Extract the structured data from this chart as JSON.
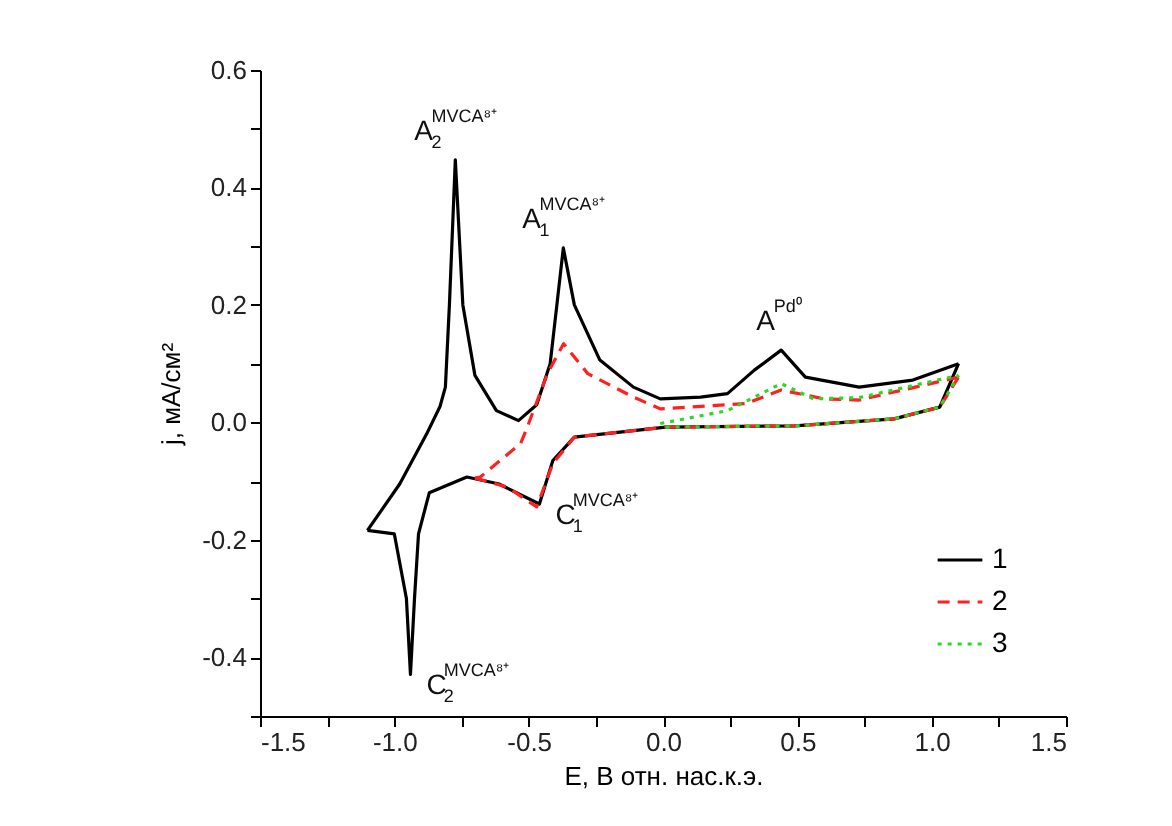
{
  "chart_data": {
    "type": "line",
    "xlabel": "E, В отн. нас.к.э.",
    "ylabel": "j, мА/см²",
    "xlim": [
      -1.5,
      1.5
    ],
    "ylim": [
      -0.5,
      0.6
    ],
    "xticks": [
      -1.5,
      {
        "value": -1.25,
        "label": null
      },
      {
        "value": -1.0,
        "label": "-1.0"
      },
      {
        "value": -0.75,
        "label": null
      },
      -0.5,
      {
        "value": -0.25,
        "label": null
      },
      {
        "value": 0,
        "label": "0.0"
      },
      {
        "value": 0.25,
        "label": null
      },
      0.5,
      {
        "value": 0.75,
        "label": null
      },
      {
        "value": 1.0,
        "label": "1.0"
      },
      {
        "value": 1.25,
        "label": null
      },
      1.5
    ],
    "yticks": [
      {
        "value": -0.5,
        "label": null
      },
      -0.4,
      {
        "value": -0.3,
        "label": null
      },
      -0.2,
      {
        "value": -0.1,
        "label": null
      },
      {
        "value": 0,
        "label": "0.0"
      },
      {
        "value": 0.1,
        "label": null
      },
      0.2,
      {
        "value": 0.3,
        "label": null
      },
      0.4,
      {
        "value": 0.5,
        "label": null
      },
      0.6
    ],
    "grid": false,
    "legend": "bottom right",
    "marker": "none",
    "series": [
      {
        "name": "1",
        "color": "#000000",
        "line_style": "solid",
        "x": [
          1.1,
          0.93,
          0.73,
          0.53,
          0.44,
          0.34,
          0.24,
          0.14,
          -0.01,
          -0.11,
          -0.235,
          -0.33,
          -0.371,
          -0.395,
          -0.42,
          -0.47,
          -0.538,
          -0.62,
          -0.7,
          -0.745,
          -0.773,
          -0.795,
          -0.81,
          -0.83,
          -0.88,
          -0.98,
          -1.1
        ],
        "values": [
          0.1,
          0.072,
          0.06,
          0.077,
          0.123,
          0.089,
          0.049,
          0.043,
          0.04,
          0.06,
          0.106,
          0.2,
          0.297,
          0.2,
          0.1,
          0.03,
          0.003,
          0.02,
          0.08,
          0.2,
          0.447,
          0.2,
          0.06,
          0.027,
          -0.02,
          -0.105,
          -0.184
        ]
      },
      {
        "color": "#000000",
        "line_style": "solid",
        "x": [
          -1.1,
          -1.0,
          -0.955,
          -0.94,
          -0.925,
          -0.91,
          -0.87,
          -0.73,
          -0.61,
          -0.46,
          -0.41,
          -0.33,
          0.01,
          0.49,
          0.86,
          1.03,
          1.1
        ],
        "values": [
          -0.184,
          -0.19,
          -0.3,
          -0.429,
          -0.3,
          -0.19,
          -0.12,
          -0.093,
          -0.105,
          -0.139,
          -0.065,
          -0.025,
          -0.008,
          -0.006,
          0.006,
          0.026,
          0.1
        ]
      },
      {
        "name": "2",
        "color": "#ff2020",
        "line_style": "dashed",
        "x": [
          1.1,
          0.73,
          0.6,
          0.44,
          0.31,
          -0.01,
          -0.11,
          -0.28,
          -0.37,
          -0.43,
          -0.51,
          -0.53,
          -0.68,
          -0.7
        ],
        "values": [
          0.077,
          0.038,
          0.04,
          0.055,
          0.032,
          0.023,
          0.043,
          0.083,
          0.134,
          0.083,
          -0.014,
          -0.036,
          -0.093,
          -0.095
        ]
      },
      {
        "color": "#ff2020",
        "line_style": "dashed",
        "x": [
          -0.7,
          -0.58,
          -0.47,
          -0.41,
          -0.33,
          0.01,
          0.49,
          0.86,
          1.03,
          1.1
        ],
        "values": [
          -0.095,
          -0.11,
          -0.144,
          -0.07,
          -0.025,
          -0.008,
          -0.006,
          0.006,
          0.026,
          0.077
        ]
      },
      {
        "name": "3",
        "color": "#22dd22",
        "line_style": "dotted",
        "x": [
          -0.01,
          0.24,
          0.44,
          0.56,
          0.73,
          1.1
        ],
        "values": [
          -0.002,
          0.02,
          0.066,
          0.04,
          0.042,
          0.08
        ]
      },
      {
        "color": "#22dd22",
        "line_style": "dotted",
        "x": [
          0.01,
          0.49,
          0.86,
          1.03,
          1.1
        ],
        "values": [
          -0.008,
          -0.006,
          0.006,
          0.026,
          0.08
        ]
      }
    ],
    "annotations": [
      {
        "text": "A$_{2}$$^{MVCA⁸⁺}$",
        "x": -0.773,
        "y": 0.447
      },
      {
        "text": "A$_{1}$$^{MVCA⁸⁺}$",
        "x": -0.371,
        "y": 0.297
      },
      {
        "text": "A$^{Pd⁰}$",
        "x": 0.44,
        "y": 0.123
      },
      {
        "text": "C$_{1}$$^{MVCA⁸⁺}$",
        "x": -0.46,
        "y": -0.139
      },
      {
        "text": "C$_{2}$$^{MVCA⁸⁺}$",
        "x": -0.94,
        "y": -0.429
      }
    ]
  }
}
